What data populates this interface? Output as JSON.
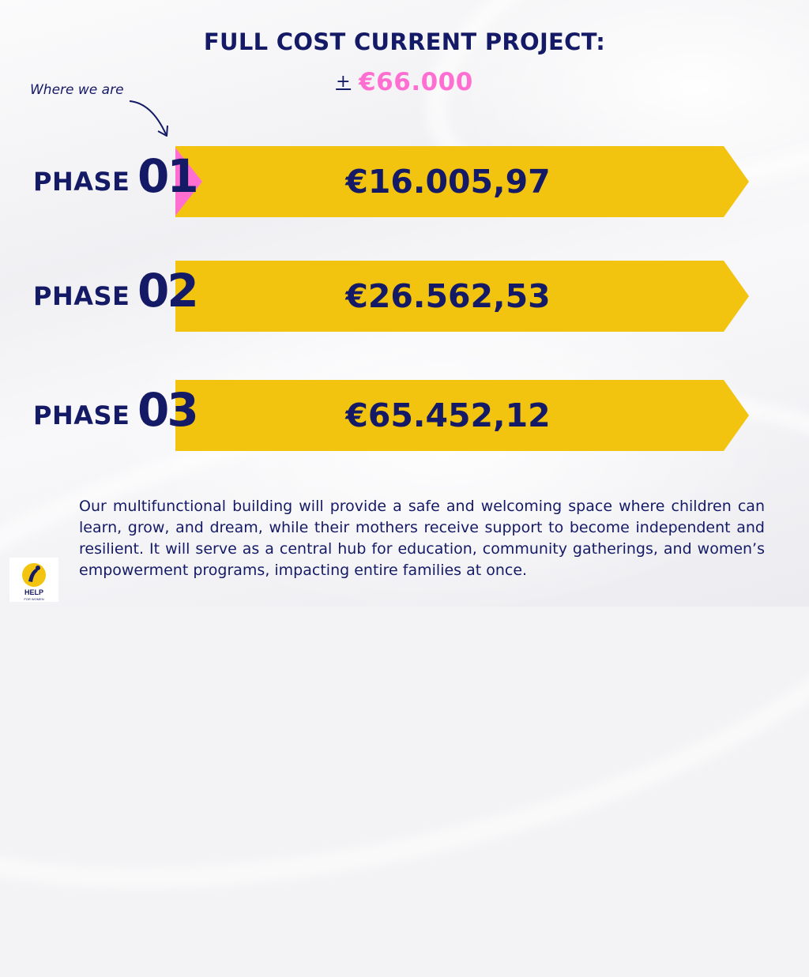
{
  "header": {
    "title": "FULL COST CURRENT PROJECT:",
    "total_prefix": "+",
    "total_value": "€66.000",
    "total_color": "#ff6fd1"
  },
  "annotation": {
    "where_label": "Where we are"
  },
  "phases": [
    {
      "label": "PHASE",
      "number": "01",
      "amount": "€16.005,97",
      "current": true
    },
    {
      "label": "PHASE",
      "number": "02",
      "amount": "€26.562,53",
      "current": false
    },
    {
      "label": "PHASE",
      "number": "03",
      "amount": "€65.452,12",
      "current": false
    }
  ],
  "description": "Our multifunctional building will provide a safe and welcoming space where children can learn, grow, and dream, while their mothers receive support to become independent and resilient. It will serve as a central hub for education, community gatherings, and women’s empowerment programs, impacting entire families at once.",
  "logo": {
    "text": "HELP",
    "subtext": "FOR WOMEN",
    "icon": "help-for-women-logo"
  },
  "colors": {
    "navy": "#151a66",
    "banner_yellow": "#f2c40f",
    "marker_pink": "#ff6fd1"
  }
}
